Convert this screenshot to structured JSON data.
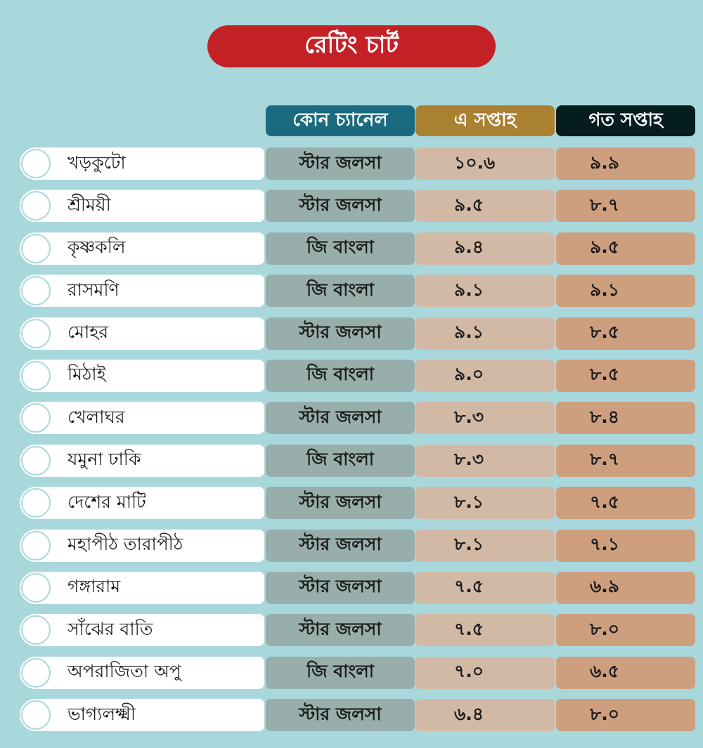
{
  "title": "রেটিং চার্ট",
  "headers": {
    "channel": "কোন চ্যানেল",
    "this_week": "এ সপ্তাহ",
    "last_week": "গত সপ্তাহ"
  },
  "colors": {
    "background": "#a9d8dc",
    "title_bg": "#c42127",
    "channel_header": "#1a6b7f",
    "this_week_header": "#a98131",
    "last_week_header": "#051d1f",
    "channel_cell": "#98aeab",
    "this_week_cell": "#d2b9a6",
    "last_week_cell": "#cd9f7e"
  },
  "rows": [
    {
      "show": "খড়কুটো",
      "channel": "স্টার জলসা",
      "this_week": "১০.৬",
      "last_week": "৯.৯"
    },
    {
      "show": "শ্রীময়ী",
      "channel": "স্টার জলসা",
      "this_week": "৯.৫",
      "last_week": "৮.৭"
    },
    {
      "show": "কৃষ্ণকলি",
      "channel": "জি বাংলা",
      "this_week": "৯.৪",
      "last_week": "৯.৫"
    },
    {
      "show": "রাসমণি",
      "channel": "জি বাংলা",
      "this_week": "৯.১",
      "last_week": "৯.১"
    },
    {
      "show": "মোহর",
      "channel": "স্টার জলসা",
      "this_week": "৯.১",
      "last_week": "৮.৫"
    },
    {
      "show": "মিঠাই",
      "channel": "জি বাংলা",
      "this_week": "৯.০",
      "last_week": "৮.৫"
    },
    {
      "show": "খেলাঘর",
      "channel": "স্টার জলসা",
      "this_week": "৮.৩",
      "last_week": "৮.৪"
    },
    {
      "show": "যমুনা ঢাকি",
      "channel": "জি বাংলা",
      "this_week": "৮.৩",
      "last_week": "৮.৭"
    },
    {
      "show": "দেশের মাটি",
      "channel": "স্টার জলসা",
      "this_week": "৮.১",
      "last_week": "৭.৫"
    },
    {
      "show": "মহাপীঠ তারাপীঠ",
      "channel": "স্টার জলসা",
      "this_week": "৮.১",
      "last_week": "৭.১"
    },
    {
      "show": "গঙ্গারাম",
      "channel": "স্টার জলসা",
      "this_week": "৭.৫",
      "last_week": "৬.৯"
    },
    {
      "show": "সাঁঝের বাতি",
      "channel": "স্টার জলসা",
      "this_week": "৭.৫",
      "last_week": "৮.০"
    },
    {
      "show": "অপরাজিতা অপু",
      "channel": "জি বাংলা",
      "this_week": "৭.০",
      "last_week": "৬.৫"
    },
    {
      "show": "ভাগ্যলক্ষ্মী",
      "channel": "স্টার জলসা",
      "this_week": "৬.৪",
      "last_week": "৮.০"
    }
  ]
}
